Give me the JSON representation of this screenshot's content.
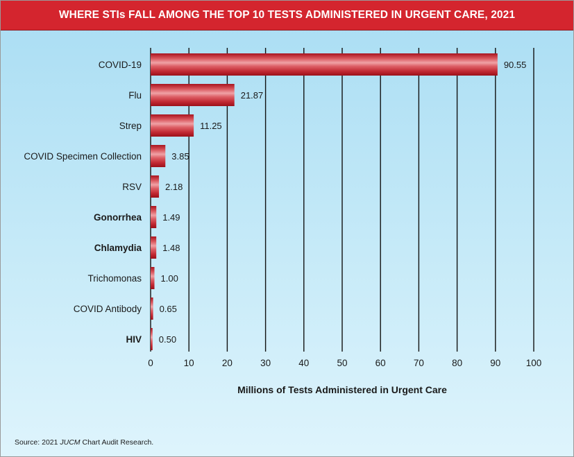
{
  "header": {
    "title": "WHERE STIs FALL AMONG THE TOP 10 TESTS ADMINISTERED IN URGENT CARE, 2021",
    "bg_color": "#d4252e"
  },
  "chart_data": {
    "type": "bar",
    "orientation": "horizontal",
    "categories": [
      "COVID-19",
      "Flu",
      "Strep",
      "COVID Specimen Collection",
      "RSV",
      "Gonorrhea",
      "Chlamydia",
      "Trichomonas",
      "COVID Antibody",
      "HIV"
    ],
    "bold_categories": [
      "Gonorrhea",
      "Chlamydia",
      "HIV"
    ],
    "values": [
      90.55,
      21.87,
      11.25,
      3.85,
      2.18,
      1.49,
      1.48,
      1.0,
      0.65,
      0.5
    ],
    "value_labels": [
      "90.55",
      "21.87",
      "11.25",
      "3.85",
      "2.18",
      "1.49",
      "1.48",
      "1.00",
      "0.65",
      "0.50"
    ],
    "xticks": [
      "0",
      "10",
      "20",
      "30",
      "40",
      "50",
      "60",
      "70",
      "80",
      "90",
      "100"
    ],
    "xlim": [
      0,
      100
    ],
    "xlabel": "Millions of Tests Administered in Urgent Care",
    "grid": "vertical",
    "bar_color": "#c8323c"
  },
  "footer": {
    "source_prefix": "Source: 2021 ",
    "source_italic": "JUCM",
    "source_suffix": " Chart Audit Research."
  }
}
